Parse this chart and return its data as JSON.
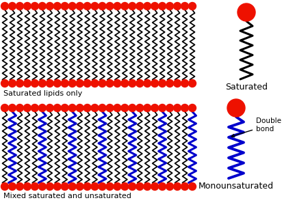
{
  "bg_color": "#ffffff",
  "head_color": "#ee1100",
  "sat_color": "#000000",
  "unsat_color": "#0000cc",
  "label_sat_only": "Saturated lipids only",
  "label_mixed": "Mixed saturated and unsaturated",
  "label_saturated": "Saturated",
  "label_monounsat": "Monounsaturated",
  "label_double_bond": "Double\nbond",
  "fig_w": 4.5,
  "fig_h": 3.03,
  "dpi": 100
}
